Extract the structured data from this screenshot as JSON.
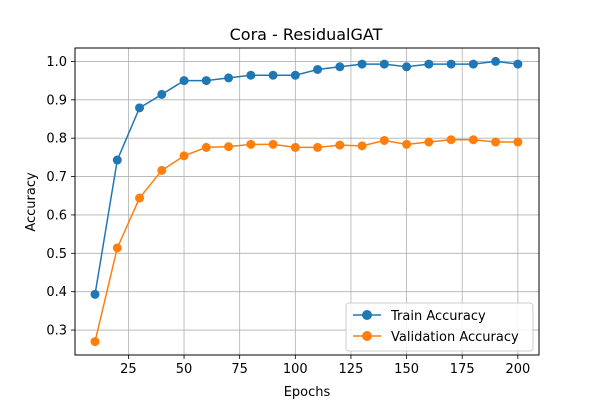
{
  "chart_data": {
    "type": "line",
    "title": "Cora - ResidualGAT",
    "xlabel": "Epochs",
    "ylabel": "Accuracy",
    "xlim": [
      1,
      209.5
    ],
    "ylim": [
      0.235,
      1.035
    ],
    "x_ticks": [
      25,
      50,
      75,
      100,
      125,
      150,
      175,
      200
    ],
    "y_ticks": [
      0.3,
      0.4,
      0.5,
      0.6,
      0.7,
      0.8,
      0.9,
      1.0
    ],
    "x_tick_labels": [
      "25",
      "50",
      "75",
      "100",
      "125",
      "150",
      "175",
      "200"
    ],
    "y_tick_labels": [
      "0.3",
      "0.4",
      "0.5",
      "0.6",
      "0.7",
      "0.8",
      "0.9",
      "1.0"
    ],
    "grid": true,
    "legend_position": "lower-right",
    "x": [
      10,
      20,
      30,
      40,
      50,
      60,
      70,
      80,
      90,
      100,
      110,
      120,
      130,
      140,
      150,
      160,
      170,
      180,
      190,
      200
    ],
    "series": [
      {
        "name": "Train Accuracy",
        "color": "#1f77b4",
        "values": [
          0.393,
          0.743,
          0.879,
          0.914,
          0.95,
          0.95,
          0.957,
          0.964,
          0.964,
          0.964,
          0.979,
          0.986,
          0.993,
          0.993,
          0.986,
          0.993,
          0.993,
          0.993,
          1.0,
          0.993
        ]
      },
      {
        "name": "Validation Accuracy",
        "color": "#ff7f0e",
        "values": [
          0.27,
          0.514,
          0.644,
          0.716,
          0.754,
          0.776,
          0.778,
          0.784,
          0.784,
          0.776,
          0.776,
          0.782,
          0.78,
          0.794,
          0.784,
          0.79,
          0.796,
          0.796,
          0.79,
          0.79
        ]
      }
    ]
  }
}
